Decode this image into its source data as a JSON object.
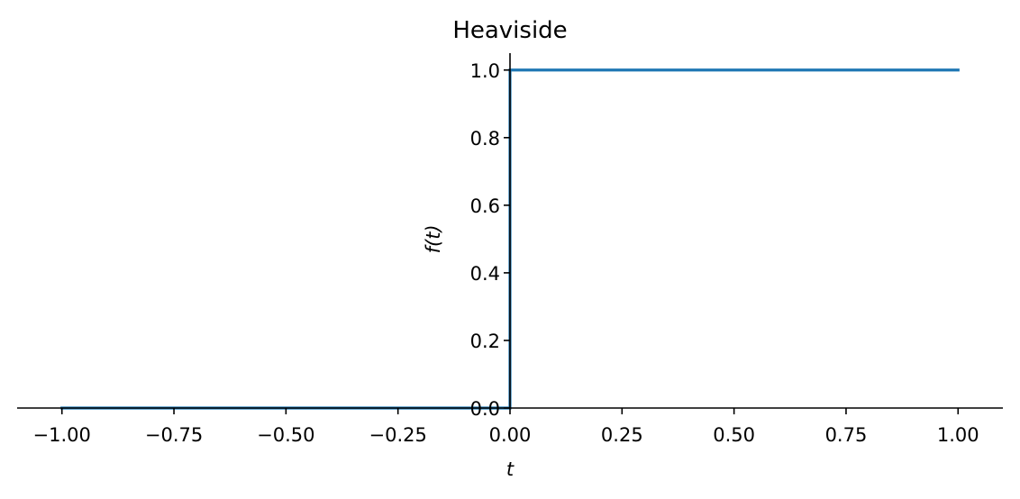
{
  "chart_data": {
    "type": "line",
    "title": "Heaviside",
    "xlabel": "t",
    "ylabel": "f(t)",
    "xlim": [
      -1.1,
      1.1
    ],
    "ylim": [
      0,
      1.05
    ],
    "xticks": [
      -1.0,
      -0.75,
      -0.5,
      -0.25,
      0.0,
      0.25,
      0.5,
      0.75,
      1.0
    ],
    "xtick_labels": [
      "−1.00",
      "−0.75",
      "−0.50",
      "−0.25",
      "0.00",
      "0.25",
      "0.50",
      "0.75",
      "1.00"
    ],
    "yticks": [
      0.0,
      0.2,
      0.4,
      0.6,
      0.8,
      1.0
    ],
    "ytick_labels": [
      "0.0",
      "0.2",
      "0.4",
      "0.6",
      "0.8",
      "1.0"
    ],
    "grid": false,
    "legend": "none",
    "spines": "centered-at-origin",
    "series": [
      {
        "color": "#1f77b4",
        "x": [
          -1.0,
          0.0,
          0.0,
          1.0
        ],
        "y": [
          0.0,
          0.0,
          1.0,
          1.0
        ]
      }
    ]
  }
}
